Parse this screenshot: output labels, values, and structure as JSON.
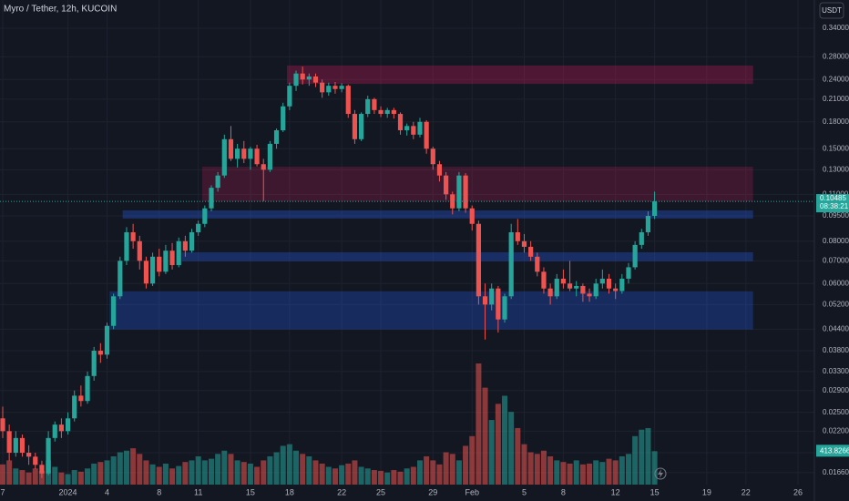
{
  "chart_data": {
    "type": "candlestick",
    "title": "Myro / Tether, 12h, KUCOIN",
    "currency_button": "USDT",
    "countdown": "08:38:21",
    "log_scale": true,
    "grid": true,
    "up_color": "#26a69a",
    "down_color": "#ef5350",
    "volume_up_color": "rgba(38,166,154,0.55)",
    "volume_down_color": "rgba(239,83,80,0.55)",
    "categories": [
      "7",
      null,
      null,
      null,
      null,
      null,
      null,
      null,
      null,
      null,
      "2024",
      null,
      null,
      null,
      null,
      null,
      "4",
      null,
      null,
      null,
      null,
      null,
      null,
      null,
      "8",
      null,
      null,
      null,
      null,
      null,
      "11",
      null,
      null,
      null,
      null,
      null,
      null,
      null,
      "15",
      null,
      null,
      null,
      null,
      null,
      "18",
      null,
      null,
      null,
      null,
      null,
      null,
      null,
      "22",
      null,
      null,
      null,
      null,
      null,
      "25",
      null,
      null,
      null,
      null,
      null,
      null,
      null,
      "29",
      null,
      null,
      null,
      null,
      null,
      "Feb",
      null,
      null,
      null,
      null,
      null,
      null,
      null,
      "5",
      null,
      null,
      null,
      null,
      null,
      "8",
      null,
      null,
      null,
      null,
      null,
      null,
      null,
      "12",
      null,
      null,
      null,
      null,
      null,
      "15",
      null,
      null,
      null,
      null,
      null,
      null,
      null,
      "19",
      null,
      null,
      null,
      null,
      null,
      "22",
      null,
      null,
      null,
      null,
      null,
      null,
      null,
      "26"
    ],
    "values": [
      [
        0.024,
        0.026,
        0.021,
        0.022
      ],
      [
        0.022,
        0.023,
        0.018,
        0.019
      ],
      [
        0.019,
        0.022,
        0.0185,
        0.021
      ],
      [
        0.021,
        0.0215,
        0.0185,
        0.019
      ],
      [
        0.019,
        0.02,
        0.0175,
        0.0185
      ],
      [
        0.0185,
        0.019,
        0.017,
        0.0175
      ],
      [
        0.0175,
        0.018,
        0.016,
        0.0165
      ],
      [
        0.0165,
        0.022,
        0.0163,
        0.021
      ],
      [
        0.021,
        0.0235,
        0.0205,
        0.023
      ],
      [
        0.023,
        0.024,
        0.021,
        0.022
      ],
      [
        0.022,
        0.025,
        0.0215,
        0.024
      ],
      [
        0.024,
        0.029,
        0.0235,
        0.028
      ],
      [
        0.028,
        0.03,
        0.026,
        0.027
      ],
      [
        0.027,
        0.033,
        0.0265,
        0.032
      ],
      [
        0.032,
        0.039,
        0.031,
        0.038
      ],
      [
        0.038,
        0.04,
        0.035,
        0.037
      ],
      [
        0.037,
        0.046,
        0.036,
        0.045
      ],
      [
        0.045,
        0.056,
        0.044,
        0.055
      ],
      [
        0.055,
        0.072,
        0.054,
        0.07
      ],
      [
        0.07,
        0.088,
        0.068,
        0.085
      ],
      [
        0.085,
        0.09,
        0.076,
        0.08
      ],
      [
        0.08,
        0.083,
        0.066,
        0.07
      ],
      [
        0.07,
        0.072,
        0.058,
        0.06
      ],
      [
        0.06,
        0.074,
        0.059,
        0.072
      ],
      [
        0.072,
        0.076,
        0.063,
        0.065
      ],
      [
        0.065,
        0.078,
        0.064,
        0.075
      ],
      [
        0.075,
        0.079,
        0.066,
        0.068
      ],
      [
        0.068,
        0.082,
        0.067,
        0.08
      ],
      [
        0.08,
        0.083,
        0.072,
        0.075
      ],
      [
        0.075,
        0.087,
        0.074,
        0.085
      ],
      [
        0.085,
        0.092,
        0.083,
        0.09
      ],
      [
        0.09,
        0.102,
        0.088,
        0.1
      ],
      [
        0.1,
        0.117,
        0.098,
        0.115
      ],
      [
        0.115,
        0.128,
        0.112,
        0.125
      ],
      [
        0.125,
        0.165,
        0.123,
        0.16
      ],
      [
        0.16,
        0.175,
        0.138,
        0.14
      ],
      [
        0.14,
        0.155,
        0.132,
        0.15
      ],
      [
        0.15,
        0.158,
        0.136,
        0.14
      ],
      [
        0.14,
        0.152,
        0.13,
        0.15
      ],
      [
        0.15,
        0.154,
        0.133,
        0.135
      ],
      [
        0.135,
        0.14,
        0.105,
        0.13
      ],
      [
        0.13,
        0.158,
        0.128,
        0.155
      ],
      [
        0.155,
        0.172,
        0.15,
        0.17
      ],
      [
        0.17,
        0.205,
        0.168,
        0.2
      ],
      [
        0.2,
        0.235,
        0.195,
        0.23
      ],
      [
        0.23,
        0.255,
        0.222,
        0.25
      ],
      [
        0.25,
        0.262,
        0.232,
        0.24
      ],
      [
        0.24,
        0.25,
        0.23,
        0.245
      ],
      [
        0.245,
        0.25,
        0.228,
        0.235
      ],
      [
        0.235,
        0.24,
        0.212,
        0.22
      ],
      [
        0.22,
        0.235,
        0.215,
        0.23
      ],
      [
        0.23,
        0.236,
        0.218,
        0.225
      ],
      [
        0.225,
        0.234,
        0.22,
        0.23
      ],
      [
        0.23,
        0.232,
        0.185,
        0.19
      ],
      [
        0.19,
        0.195,
        0.155,
        0.16
      ],
      [
        0.16,
        0.192,
        0.158,
        0.19
      ],
      [
        0.19,
        0.215,
        0.186,
        0.21
      ],
      [
        0.21,
        0.212,
        0.19,
        0.195
      ],
      [
        0.195,
        0.2,
        0.186,
        0.19
      ],
      [
        0.19,
        0.198,
        0.185,
        0.195
      ],
      [
        0.195,
        0.198,
        0.184,
        0.19
      ],
      [
        0.19,
        0.192,
        0.165,
        0.17
      ],
      [
        0.17,
        0.178,
        0.164,
        0.175
      ],
      [
        0.175,
        0.18,
        0.16,
        0.165
      ],
      [
        0.165,
        0.185,
        0.162,
        0.18
      ],
      [
        0.18,
        0.182,
        0.145,
        0.15
      ],
      [
        0.15,
        0.152,
        0.13,
        0.135
      ],
      [
        0.135,
        0.138,
        0.12,
        0.125
      ],
      [
        0.125,
        0.128,
        0.106,
        0.11
      ],
      [
        0.11,
        0.112,
        0.096,
        0.1
      ],
      [
        0.1,
        0.128,
        0.098,
        0.125
      ],
      [
        0.125,
        0.127,
        0.097,
        0.1
      ],
      [
        0.1,
        0.102,
        0.086,
        0.09
      ],
      [
        0.09,
        0.092,
        0.052,
        0.055
      ],
      [
        0.055,
        0.06,
        0.041,
        0.052
      ],
      [
        0.052,
        0.06,
        0.05,
        0.058
      ],
      [
        0.058,
        0.059,
        0.043,
        0.047
      ],
      [
        0.047,
        0.056,
        0.046,
        0.055
      ],
      [
        0.055,
        0.09,
        0.054,
        0.085
      ],
      [
        0.085,
        0.093,
        0.078,
        0.08
      ],
      [
        0.08,
        0.084,
        0.074,
        0.077
      ],
      [
        0.077,
        0.08,
        0.07,
        0.072
      ],
      [
        0.072,
        0.074,
        0.063,
        0.065
      ],
      [
        0.065,
        0.067,
        0.056,
        0.058
      ],
      [
        0.058,
        0.06,
        0.052,
        0.055
      ],
      [
        0.055,
        0.064,
        0.054,
        0.062
      ],
      [
        0.062,
        0.066,
        0.058,
        0.06
      ],
      [
        0.06,
        0.07,
        0.057,
        0.058
      ],
      [
        0.058,
        0.061,
        0.055,
        0.059
      ],
      [
        0.059,
        0.06,
        0.053,
        0.056
      ],
      [
        0.056,
        0.058,
        0.053,
        0.055
      ],
      [
        0.055,
        0.062,
        0.054,
        0.06
      ],
      [
        0.06,
        0.066,
        0.058,
        0.062
      ],
      [
        0.062,
        0.064,
        0.056,
        0.058
      ],
      [
        0.058,
        0.06,
        0.054,
        0.057
      ],
      [
        0.057,
        0.064,
        0.056,
        0.062
      ],
      [
        0.062,
        0.069,
        0.06,
        0.067
      ],
      [
        0.067,
        0.08,
        0.066,
        0.078
      ],
      [
        0.078,
        0.087,
        0.076,
        0.085
      ],
      [
        0.085,
        0.098,
        0.083,
        0.095
      ],
      [
        0.095,
        0.112,
        0.093,
        0.10485
      ],
      null,
      null,
      null,
      null,
      null,
      null,
      null,
      null,
      null,
      null,
      null,
      null,
      null,
      null,
      null,
      null,
      null,
      null,
      null,
      null,
      null,
      null
    ],
    "volume": [
      250,
      300,
      200,
      180,
      150,
      200,
      170,
      300,
      220,
      150,
      130,
      180,
      160,
      200,
      260,
      280,
      300,
      350,
      400,
      420,
      450,
      380,
      300,
      250,
      220,
      260,
      200,
      230,
      280,
      300,
      350,
      300,
      320,
      380,
      420,
      380,
      300,
      280,
      260,
      220,
      300,
      350,
      400,
      480,
      500,
      420,
      380,
      350,
      300,
      260,
      220,
      200,
      240,
      260,
      300,
      220,
      200,
      180,
      170,
      150,
      180,
      160,
      200,
      220,
      300,
      350,
      300,
      250,
      400,
      380,
      300,
      480,
      600,
      1500,
      1200,
      800,
      1000,
      1100,
      900,
      700,
      500,
      400,
      380,
      420,
      350,
      300,
      280,
      260,
      300,
      250,
      260,
      300,
      280,
      320,
      300,
      350,
      380,
      600,
      680,
      700,
      413.82666,
      null,
      null,
      null,
      null,
      null,
      null,
      null,
      null,
      null,
      null,
      null,
      null,
      null,
      null,
      null,
      null,
      null,
      null,
      null,
      null,
      null,
      null
    ],
    "volume_lim": [
      0,
      6000
    ],
    "ylim": [
      0.0153,
      0.412
    ],
    "yticks": [
      {
        "value": 0.34,
        "label": "0.34000"
      },
      {
        "value": 0.28,
        "label": "0.28000"
      },
      {
        "value": 0.24,
        "label": "0.24000"
      },
      {
        "value": 0.21,
        "label": "0.21000"
      },
      {
        "value": 0.18,
        "label": "0.18000"
      },
      {
        "value": 0.15,
        "label": "0.15000"
      },
      {
        "value": 0.13,
        "label": "0.13000"
      },
      {
        "value": 0.11,
        "label": "0.11000"
      },
      {
        "value": 0.095,
        "label": "0.09500"
      },
      {
        "value": 0.08,
        "label": "0.08000"
      },
      {
        "value": 0.07,
        "label": "0.07000"
      },
      {
        "value": 0.06,
        "label": "0.06000"
      },
      {
        "value": 0.052,
        "label": "0.05200"
      },
      {
        "value": 0.044,
        "label": "0.04400"
      },
      {
        "value": 0.038,
        "label": "0.03800"
      },
      {
        "value": 0.033,
        "label": "0.03300"
      },
      {
        "value": 0.029,
        "label": "0.02900"
      },
      {
        "value": 0.025,
        "label": "0.02500"
      },
      {
        "value": 0.022,
        "label": "0.02200"
      },
      {
        "value": 0.019,
        "label": "0.01900"
      },
      {
        "value": 0.0166,
        "label": "0.01660"
      }
    ],
    "zones": [
      {
        "from": 43.6,
        "to": 115.1,
        "ylim": [
          0.233,
          0.264
        ],
        "color": "rgba(233,30,99,0.28)"
      },
      {
        "from": 30.6,
        "to": 115.1,
        "ylim": [
          0.1049,
          0.1327
        ],
        "color": "rgba(233,30,99,0.2)"
      },
      {
        "from": 18.4,
        "to": 115.1,
        "ylim": [
          0.0933,
          0.0986
        ],
        "color": "rgba(41,98,255,0.3)"
      },
      {
        "from": 27.5,
        "to": 115.1,
        "ylim": [
          0.0698,
          0.0742
        ],
        "color": "rgba(41,98,255,0.3)"
      },
      {
        "from": 16.4,
        "to": 115.1,
        "ylim": [
          0.0439,
          0.0569
        ],
        "color": "rgba(41,98,255,0.28)"
      }
    ]
  }
}
